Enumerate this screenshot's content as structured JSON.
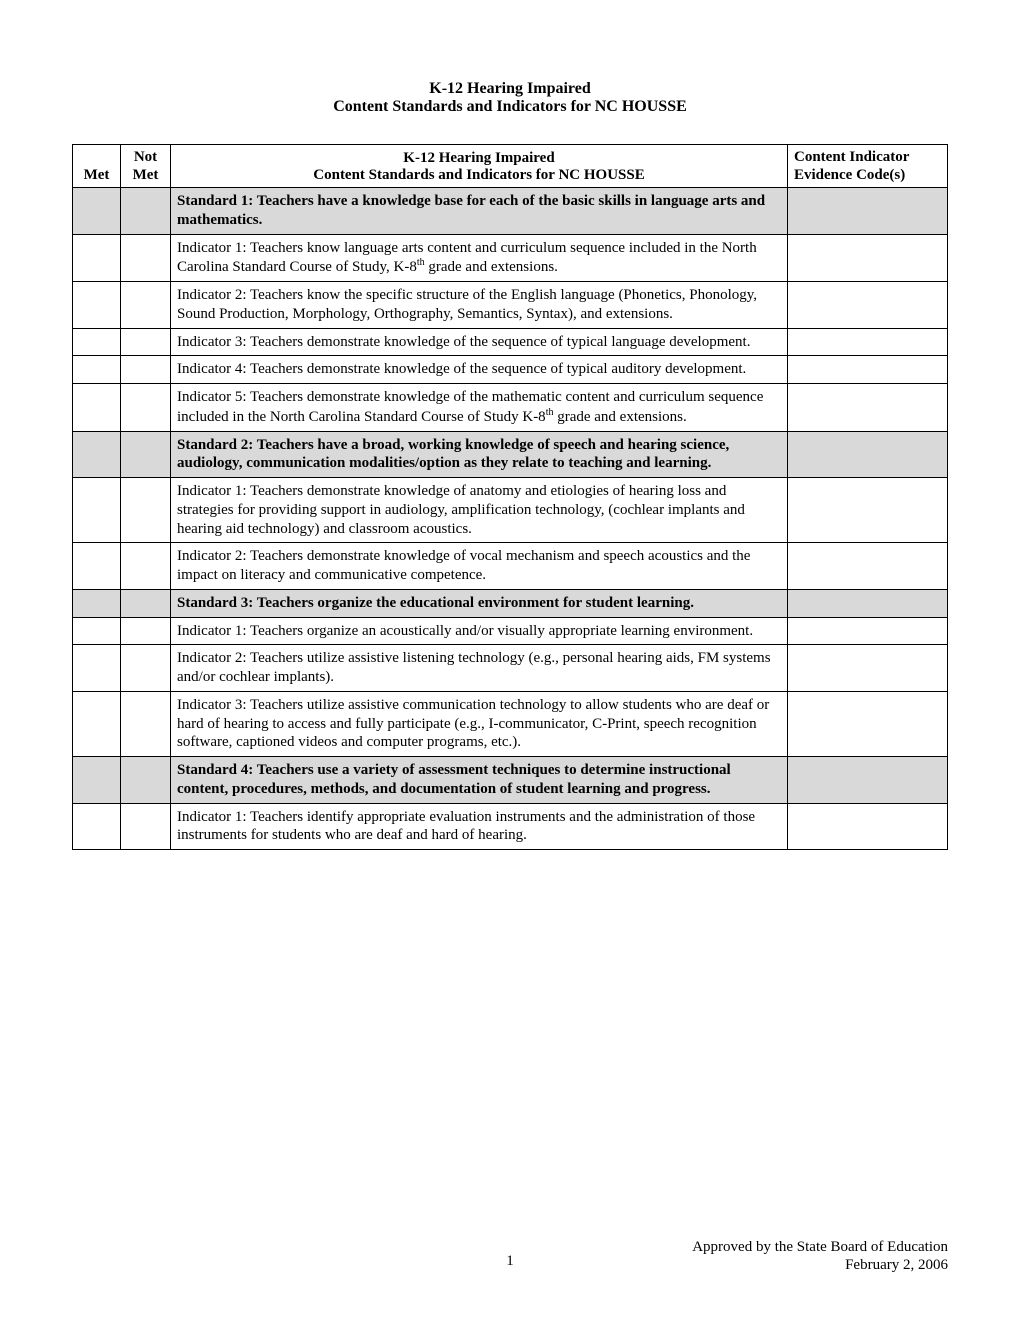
{
  "title": {
    "line1": "K-12 Hearing Impaired",
    "line2": "Content Standards and Indicators for NC HOUSSE"
  },
  "headers": {
    "met": "Met",
    "not": "Not",
    "notmet_sub": "Met",
    "content_line1": "K-12 Hearing Impaired",
    "content_line2": "Content Standards and Indicators for NC HOUSSE",
    "evidence_line1": "Content Indicator",
    "evidence_line2": "Evidence Code(s)"
  },
  "rows": [
    {
      "type": "standard",
      "text": "Standard 1: Teachers have a knowledge base for each of the basic skills in language arts and mathematics."
    },
    {
      "type": "indicator",
      "html": "Indicator 1: Teachers know language arts content and curriculum sequence included in the North Carolina Standard Course of Study, K-8<sup>th</sup> grade and extensions."
    },
    {
      "type": "indicator",
      "text": "Indicator 2: Teachers know the specific structure of the English language (Phonetics, Phonology, Sound Production, Morphology, Orthography, Semantics, Syntax), and extensions."
    },
    {
      "type": "indicator",
      "text": "Indicator 3: Teachers demonstrate knowledge of the sequence of typical language development."
    },
    {
      "type": "indicator",
      "text": "Indicator 4: Teachers demonstrate knowledge of the sequence of typical auditory development."
    },
    {
      "type": "indicator",
      "html": "Indicator 5: Teachers demonstrate knowledge of the mathematic content and curriculum sequence included in the North Carolina Standard Course of Study K-8<sup>th</sup> grade and extensions."
    },
    {
      "type": "standard",
      "text": "Standard 2: Teachers have a broad, working knowledge of speech and hearing science, audiology, communication modalities/option as they relate to teaching and learning."
    },
    {
      "type": "indicator",
      "text": "Indicator 1: Teachers demonstrate knowledge of anatomy and etiologies of hearing loss and strategies for providing support in audiology, amplification technology, (cochlear implants and hearing aid technology) and classroom acoustics."
    },
    {
      "type": "indicator",
      "text": "Indicator 2: Teachers demonstrate knowledge of vocal mechanism and speech acoustics and the impact on literacy and communicative competence."
    },
    {
      "type": "standard",
      "text": "Standard 3: Teachers organize the educational environment for student learning."
    },
    {
      "type": "indicator",
      "text": "Indicator 1: Teachers organize an acoustically and/or visually appropriate learning environment."
    },
    {
      "type": "indicator",
      "text": "Indicator 2: Teachers utilize assistive listening technology (e.g., personal hearing aids, FM systems and/or cochlear implants)."
    },
    {
      "type": "indicator",
      "text": "Indicator 3: Teachers utilize assistive communication technology to allow students who are deaf or hard of hearing to access and fully participate (e.g., I-communicator, C-Print, speech recognition software, captioned videos and computer programs, etc.)."
    },
    {
      "type": "standard",
      "text": "Standard 4: Teachers use a variety of assessment techniques to determine instructional content, procedures, methods, and documentation of student learning and progress."
    },
    {
      "type": "indicator",
      "text": "Indicator 1: Teachers identify appropriate evaluation instruments and the administration of those instruments for students who are deaf and hard of hearing."
    }
  ],
  "footer": {
    "page": "1",
    "approved": "Approved by the State Board of Education",
    "date": "February 2, 2006"
  }
}
